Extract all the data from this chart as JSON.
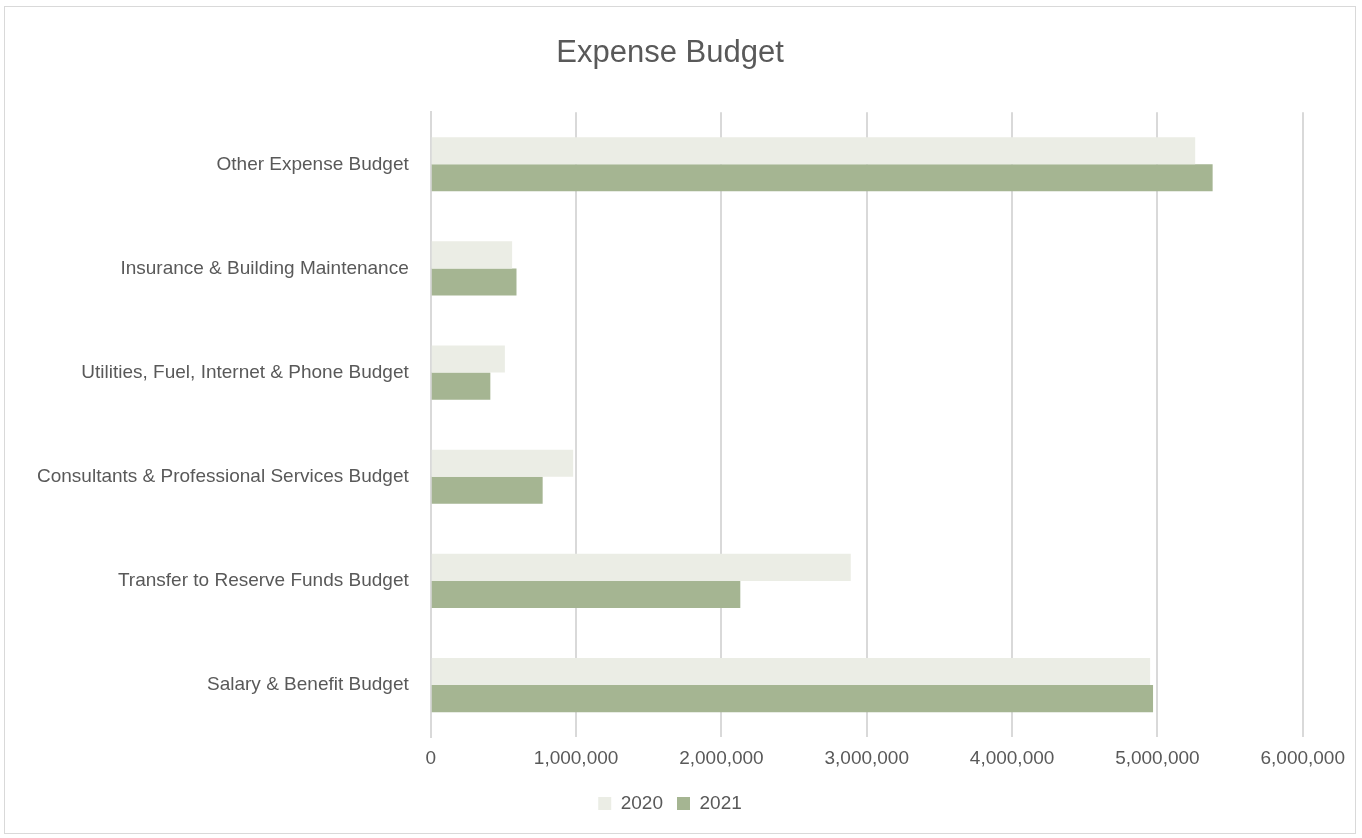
{
  "chart_data": {
    "type": "bar",
    "title": "Expense Budget",
    "orientation": "horizontal",
    "categories": [
      "Other Expense Budget",
      "Insurance & Building Maintenance",
      "Utilities, Fuel, Internet & Phone Budget",
      "Consultants & Professional Services Budget",
      "Transfer to Reserve Funds Budget",
      "Salary & Benefit Budget"
    ],
    "series": [
      {
        "name": "2020",
        "color": "#ebede5",
        "values": [
          5260000,
          560000,
          510000,
          980000,
          2890000,
          4950000
        ]
      },
      {
        "name": "2021",
        "color": "#a5b592",
        "values": [
          5380000,
          590000,
          410000,
          770000,
          2130000,
          4970000
        ]
      }
    ],
    "xlim": [
      0,
      6000000
    ],
    "xticks": [
      {
        "value": 0,
        "label": "0"
      },
      {
        "value": 1000000,
        "label": "1,000,000"
      },
      {
        "value": 2000000,
        "label": "2,000,000"
      },
      {
        "value": 3000000,
        "label": "3,000,000"
      },
      {
        "value": 4000000,
        "label": "4,000,000"
      },
      {
        "value": 5000000,
        "label": "5,000,000"
      },
      {
        "value": 6000000,
        "label": "6,000,000"
      }
    ],
    "grid": "x",
    "legend": "bottom"
  }
}
